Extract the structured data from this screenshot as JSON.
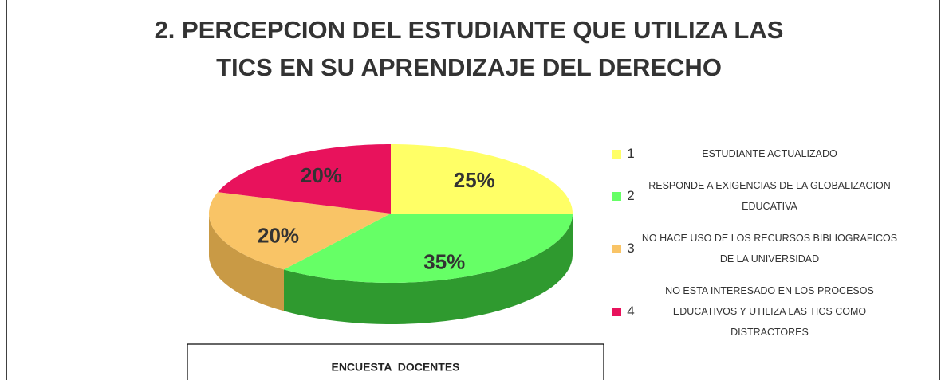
{
  "chart_data": {
    "type": "pie",
    "title": [
      "2. PERCEPCION DEL ESTUDIANTE QUE UTILIZA LAS",
      "TICS EN SU APRENDIZAJE DEL DERECHO"
    ],
    "category_numbers": [
      1,
      2,
      3,
      4
    ],
    "categories": [
      "ESTUDIANTE ACTUALIZADO",
      "RESPONDE A EXIGENCIAS DE LA GLOBALIZACION EDUCATIVA",
      "NO HACE USO DE LOS RECURSOS BIBLIOGRAFICOS DE LA UNIVERSIDAD",
      "NO ESTA INTERESADO EN LOS PROCESOS EDUCATIVOS Y UTILIZA LAS TICS COMO DISTRACTORES"
    ],
    "values": [
      25,
      35,
      20,
      20
    ],
    "value_labels": [
      "25%",
      "35%",
      "20%",
      "20%"
    ],
    "colors": [
      "#ffff66",
      "#66ff66",
      "#f9c466",
      "#e8125c"
    ],
    "side_colors": [
      "#cccc40",
      "#2f9a2f",
      "#c99a45",
      "#a50c40"
    ],
    "footer": "ENCUESTA  DOCENTES"
  }
}
